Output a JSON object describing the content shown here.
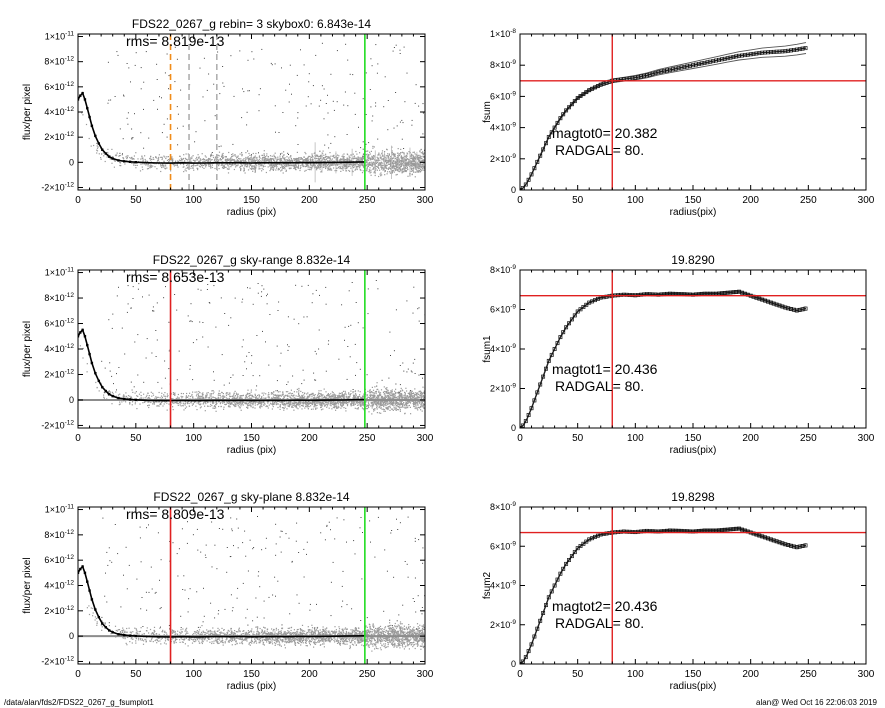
{
  "footer": {
    "path": "/data/alan/fds2/FDS22_0267_g_fsumplot1",
    "stamp": "alan@  Wed Oct 16 22:06:03 2019"
  },
  "chart_data": [
    {
      "type": "scatter",
      "panel": "left",
      "title": "FDS22_0267_g rebin= 3    skybox0:  6.843e-14",
      "annotation": "rms= 8.819e-13",
      "xlabel": "radius (pix)",
      "ylabel": "flux/per pixel",
      "xlim": [
        0,
        300
      ],
      "ylim": [
        -2.2e-12,
        1.02e-11
      ],
      "xticks": [
        0,
        50,
        100,
        150,
        200,
        250,
        300
      ],
      "xtick_labels": [
        "0",
        "50",
        "100",
        "150",
        "200",
        "250",
        "300"
      ],
      "yticks": [
        -2e-12,
        0,
        2e-12,
        4e-12,
        6e-12,
        8e-12,
        1e-11
      ],
      "ytick_labels": [
        [
          "-2×10",
          "-12"
        ],
        [
          "0",
          ""
        ],
        [
          "2×10",
          "-12"
        ],
        [
          "4×10",
          "-12"
        ],
        [
          "6×10",
          "-12"
        ],
        [
          "8×10",
          "-12"
        ],
        [
          "1×10",
          "-11"
        ]
      ],
      "profile": {
        "x": [
          0,
          2,
          4,
          6,
          8,
          10,
          12,
          15,
          18,
          21,
          24,
          27,
          30,
          35,
          40,
          45,
          50,
          60,
          70,
          80,
          90,
          100,
          110,
          120,
          130,
          140,
          150,
          160,
          170,
          180,
          190,
          200,
          210,
          220,
          230,
          240,
          248
        ],
        "y": [
          5e-12,
          5.3e-12,
          5.5e-12,
          5e-12,
          4.3e-12,
          3.6e-12,
          2.9e-12,
          2.1e-12,
          1.5e-12,
          1e-12,
          7e-13,
          4.5e-13,
          3e-13,
          1.5e-13,
          8e-14,
          4e-14,
          1e-14,
          -3e-14,
          -5e-14,
          -6e-14,
          -4e-14,
          -6e-14,
          -5e-14,
          -3e-14,
          -4e-14,
          -3e-14,
          -5e-14,
          -4e-14,
          -3e-14,
          -4e-14,
          -2e-14,
          -3e-14,
          -2e-14,
          -1e-14,
          0,
          2e-14,
          3e-14
        ]
      },
      "vlines": [
        {
          "x": 80,
          "color": "#f08c1a",
          "style": "dashed"
        },
        {
          "x": 96,
          "color": "#b0b0b0",
          "style": "dashed"
        },
        {
          "x": 120,
          "color": "#b0b0b0",
          "style": "dashed"
        },
        {
          "x": 248,
          "color": "#22dd22",
          "style": "solid"
        }
      ],
      "errorbars": true,
      "zero_line": false
    },
    {
      "type": "line",
      "panel": "right",
      "title": "",
      "annotation": [
        "magtot0=  20.382",
        "RADGAL=     80."
      ],
      "xlabel": "radius(pix)",
      "ylabel": "fsum",
      "xlim": [
        0,
        300
      ],
      "ylim": [
        0,
        1e-08
      ],
      "xticks": [
        0,
        50,
        100,
        150,
        200,
        250,
        300
      ],
      "xtick_labels": [
        "0",
        "50",
        "100",
        "150",
        "200",
        "250",
        "300"
      ],
      "yticks": [
        0,
        2e-09,
        4e-09,
        6e-09,
        8e-09,
        1e-08
      ],
      "ytick_labels": [
        [
          "0",
          ""
        ],
        [
          "2×10",
          "-9"
        ],
        [
          "4×10",
          "-9"
        ],
        [
          "6×10",
          "-9"
        ],
        [
          "8×10",
          "-9"
        ],
        [
          "1×10",
          "-8"
        ]
      ],
      "curve": {
        "x": [
          0,
          3,
          6,
          10,
          15,
          20,
          25,
          30,
          35,
          40,
          50,
          60,
          70,
          80,
          90,
          100,
          110,
          120,
          130,
          140,
          150,
          160,
          170,
          180,
          190,
          200,
          210,
          220,
          230,
          240,
          248
        ],
        "y": [
          0,
          1.5e-10,
          4.5e-10,
          1e-09,
          1.8e-09,
          2.6e-09,
          3.4e-09,
          4e-09,
          4.6e-09,
          5.1e-09,
          5.9e-09,
          6.4e-09,
          6.75e-09,
          7e-09,
          7.1e-09,
          7.2e-09,
          7.35e-09,
          7.55e-09,
          7.7e-09,
          7.85e-09,
          8e-09,
          8.15e-09,
          8.3e-09,
          8.45e-09,
          8.6e-09,
          8.7e-09,
          8.8e-09,
          8.85e-09,
          8.9e-09,
          9e-09,
          9.1e-09
        ]
      },
      "band": 3.5e-10,
      "hline": 7e-09,
      "vline": 80
    },
    {
      "type": "scatter",
      "panel": "left",
      "title": "FDS22_0267_g sky-range  8.832e-14",
      "annotation": "rms= 8.653e-13",
      "xlabel": "radius (pix)",
      "ylabel": "flux/per pixel",
      "xlim": [
        0,
        300
      ],
      "ylim": [
        -2.2e-12,
        1.02e-11
      ],
      "xticks": [
        0,
        50,
        100,
        150,
        200,
        250,
        300
      ],
      "xtick_labels": [
        "0",
        "50",
        "100",
        "150",
        "200",
        "250",
        "300"
      ],
      "yticks": [
        -2e-12,
        0,
        2e-12,
        4e-12,
        6e-12,
        8e-12,
        1e-11
      ],
      "ytick_labels": [
        [
          "-2×10",
          "-12"
        ],
        [
          "0",
          ""
        ],
        [
          "2×10",
          "-12"
        ],
        [
          "4×10",
          "-12"
        ],
        [
          "6×10",
          "-12"
        ],
        [
          "8×10",
          "-12"
        ],
        [
          "1×10",
          "-11"
        ]
      ],
      "profile": {
        "x": [
          0,
          2,
          4,
          6,
          8,
          10,
          12,
          15,
          18,
          21,
          24,
          27,
          30,
          35,
          40,
          45,
          50,
          60,
          70,
          80,
          90,
          100,
          110,
          120,
          130,
          140,
          150,
          160,
          170,
          180,
          190,
          200,
          210,
          220,
          230,
          240,
          248
        ],
        "y": [
          5e-12,
          5.3e-12,
          5.5e-12,
          5e-12,
          4.3e-12,
          3.6e-12,
          2.9e-12,
          2.1e-12,
          1.5e-12,
          1e-12,
          7e-13,
          4.5e-13,
          3e-13,
          1.5e-13,
          8e-14,
          4e-14,
          1e-14,
          -3e-14,
          -5e-14,
          -6e-14,
          -4e-14,
          -6e-14,
          -5e-14,
          -3e-14,
          -4e-14,
          -3e-14,
          -5e-14,
          -4e-14,
          -3e-14,
          -4e-14,
          -2e-14,
          -3e-14,
          -2e-14,
          -1e-14,
          0,
          2e-14,
          3e-14
        ]
      },
      "vlines": [
        {
          "x": 80,
          "color": "#e02020",
          "style": "solid"
        },
        {
          "x": 248,
          "color": "#22dd22",
          "style": "solid"
        }
      ],
      "errorbars": false,
      "zero_line": true
    },
    {
      "type": "line",
      "panel": "right",
      "title": "19.8290",
      "annotation": [
        "magtot1=  20.436",
        "RADGAL=     80."
      ],
      "xlabel": "radius(pix)",
      "ylabel": "fsum1",
      "xlim": [
        0,
        300
      ],
      "ylim": [
        0,
        8e-09
      ],
      "xticks": [
        0,
        50,
        100,
        150,
        200,
        250,
        300
      ],
      "xtick_labels": [
        "0",
        "50",
        "100",
        "150",
        "200",
        "250",
        "300"
      ],
      "yticks": [
        0,
        2e-09,
        4e-09,
        6e-09,
        8e-09
      ],
      "ytick_labels": [
        [
          "0",
          ""
        ],
        [
          "2×10",
          "-9"
        ],
        [
          "4×10",
          "-9"
        ],
        [
          "6×10",
          "-9"
        ],
        [
          "8×10",
          "-9"
        ]
      ],
      "curve": {
        "x": [
          0,
          3,
          6,
          10,
          15,
          20,
          25,
          30,
          35,
          40,
          50,
          60,
          70,
          80,
          90,
          100,
          110,
          120,
          130,
          140,
          150,
          160,
          170,
          180,
          190,
          200,
          210,
          220,
          230,
          240,
          248
        ],
        "y": [
          0,
          1.5e-10,
          4.5e-10,
          1e-09,
          1.8e-09,
          2.6e-09,
          3.4e-09,
          4e-09,
          4.6e-09,
          5.1e-09,
          5.9e-09,
          6.35e-09,
          6.6e-09,
          6.7e-09,
          6.75e-09,
          6.72e-09,
          6.78e-09,
          6.75e-09,
          6.8e-09,
          6.78e-09,
          6.75e-09,
          6.8e-09,
          6.8e-09,
          6.85e-09,
          6.9e-09,
          6.7e-09,
          6.5e-09,
          6.3e-09,
          6.1e-09,
          5.95e-09,
          6.05e-09
        ]
      },
      "band": 8e-11,
      "hline": 6.7e-09,
      "vline": 80
    },
    {
      "type": "scatter",
      "panel": "left",
      "title": "FDS22_0267_g sky-plane  8.832e-14",
      "annotation": "rms= 8.809e-13",
      "xlabel": "radius (pix)",
      "ylabel": "flux/per pixel",
      "xlim": [
        0,
        300
      ],
      "ylim": [
        -2.2e-12,
        1.02e-11
      ],
      "xticks": [
        0,
        50,
        100,
        150,
        200,
        250,
        300
      ],
      "xtick_labels": [
        "0",
        "50",
        "100",
        "150",
        "200",
        "250",
        "300"
      ],
      "yticks": [
        -2e-12,
        0,
        2e-12,
        4e-12,
        6e-12,
        8e-12,
        1e-11
      ],
      "ytick_labels": [
        [
          "-2×10",
          "-12"
        ],
        [
          "0",
          ""
        ],
        [
          "2×10",
          "-12"
        ],
        [
          "4×10",
          "-12"
        ],
        [
          "6×10",
          "-12"
        ],
        [
          "8×10",
          "-12"
        ],
        [
          "1×10",
          "-11"
        ]
      ],
      "profile": {
        "x": [
          0,
          2,
          4,
          6,
          8,
          10,
          12,
          15,
          18,
          21,
          24,
          27,
          30,
          35,
          40,
          45,
          50,
          60,
          70,
          80,
          90,
          100,
          110,
          120,
          130,
          140,
          150,
          160,
          170,
          180,
          190,
          200,
          210,
          220,
          230,
          240,
          248
        ],
        "y": [
          5e-12,
          5.3e-12,
          5.5e-12,
          5e-12,
          4.3e-12,
          3.6e-12,
          2.9e-12,
          2.1e-12,
          1.5e-12,
          1e-12,
          7e-13,
          4.5e-13,
          3e-13,
          1.5e-13,
          8e-14,
          4e-14,
          1e-14,
          -3e-14,
          -5e-14,
          -6e-14,
          -4e-14,
          -6e-14,
          -5e-14,
          -3e-14,
          -4e-14,
          -3e-14,
          -5e-14,
          -4e-14,
          -3e-14,
          -4e-14,
          -2e-14,
          -3e-14,
          -2e-14,
          -1e-14,
          0,
          2e-14,
          3e-14
        ]
      },
      "vlines": [
        {
          "x": 80,
          "color": "#e02020",
          "style": "solid"
        },
        {
          "x": 248,
          "color": "#22dd22",
          "style": "solid"
        }
      ],
      "errorbars": false,
      "zero_line": true
    },
    {
      "type": "line",
      "panel": "right",
      "title": "19.8298",
      "annotation": [
        "magtot2=  20.436",
        "RADGAL=     80."
      ],
      "xlabel": "radius(pix)",
      "ylabel": "fsum2",
      "xlim": [
        0,
        300
      ],
      "ylim": [
        0,
        8e-09
      ],
      "xticks": [
        0,
        50,
        100,
        150,
        200,
        250,
        300
      ],
      "xtick_labels": [
        "0",
        "50",
        "100",
        "150",
        "200",
        "250",
        "300"
      ],
      "yticks": [
        0,
        2e-09,
        4e-09,
        6e-09,
        8e-09
      ],
      "ytick_labels": [
        [
          "0",
          ""
        ],
        [
          "2×10",
          "-9"
        ],
        [
          "4×10",
          "-9"
        ],
        [
          "6×10",
          "-9"
        ],
        [
          "8×10",
          "-9"
        ]
      ],
      "curve": {
        "x": [
          0,
          3,
          6,
          10,
          15,
          20,
          25,
          30,
          35,
          40,
          50,
          60,
          70,
          80,
          90,
          100,
          110,
          120,
          130,
          140,
          150,
          160,
          170,
          180,
          190,
          200,
          210,
          220,
          230,
          240,
          248
        ],
        "y": [
          0,
          1.5e-10,
          4.5e-10,
          1e-09,
          1.8e-09,
          2.6e-09,
          3.4e-09,
          4e-09,
          4.6e-09,
          5.1e-09,
          5.9e-09,
          6.35e-09,
          6.6e-09,
          6.7e-09,
          6.75e-09,
          6.72e-09,
          6.78e-09,
          6.75e-09,
          6.8e-09,
          6.78e-09,
          6.75e-09,
          6.8e-09,
          6.8e-09,
          6.85e-09,
          6.9e-09,
          6.7e-09,
          6.5e-09,
          6.3e-09,
          6.1e-09,
          5.95e-09,
          6.05e-09
        ]
      },
      "band": 8e-11,
      "hline": 6.7e-09,
      "vline": 80
    }
  ]
}
